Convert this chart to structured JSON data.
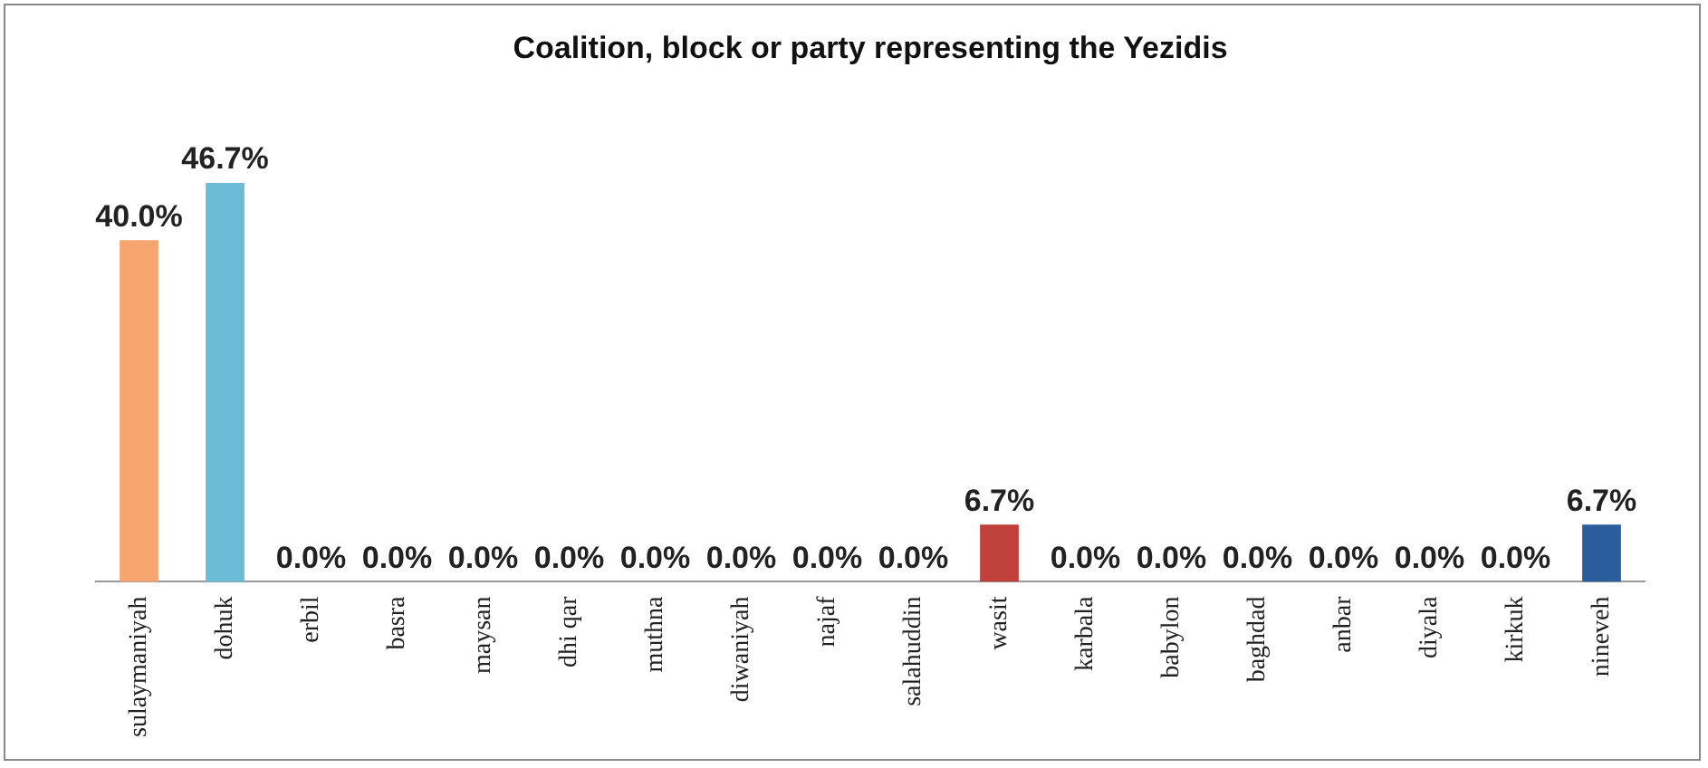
{
  "chart_data": {
    "type": "bar",
    "title": "Coalition, block or party representing the Yezidis",
    "categories": [
      "sulaymaniyah",
      "dohuk",
      "erbil",
      "basra",
      "maysan",
      "dhi qar",
      "muthna",
      "diwaniyah",
      "najaf",
      "salahuddin",
      "wasit",
      "karbala",
      "babylon",
      "baghdad",
      "anbar",
      "diyala",
      "kirkuk",
      "nineveh"
    ],
    "values": [
      40.0,
      46.7,
      0.0,
      0.0,
      0.0,
      0.0,
      0.0,
      0.0,
      0.0,
      0.0,
      6.7,
      0.0,
      0.0,
      0.0,
      0.0,
      0.0,
      0.0,
      6.7
    ],
    "value_labels": [
      "40.0%",
      "46.7%",
      "0.0%",
      "0.0%",
      "0.0%",
      "0.0%",
      "0.0%",
      "0.0%",
      "0.0%",
      "0.0%",
      "6.7%",
      "0.0%",
      "0.0%",
      "0.0%",
      "0.0%",
      "0.0%",
      "0.0%",
      "6.7%"
    ],
    "colors": [
      "#f7a56e",
      "#6bbcd6",
      "#8064a2",
      "#9bbb59",
      "#c0504d",
      "#4f81bd",
      "#e07b28",
      "#2f95ab",
      "#6a4a92",
      "#77a045",
      "#c0403b",
      "#2f5f9a",
      "#d3731f",
      "#2a8599",
      "#4a3468",
      "#6e8a35",
      "#a0302c",
      "#2b5d9c"
    ],
    "legend": false,
    "grid": false
  }
}
